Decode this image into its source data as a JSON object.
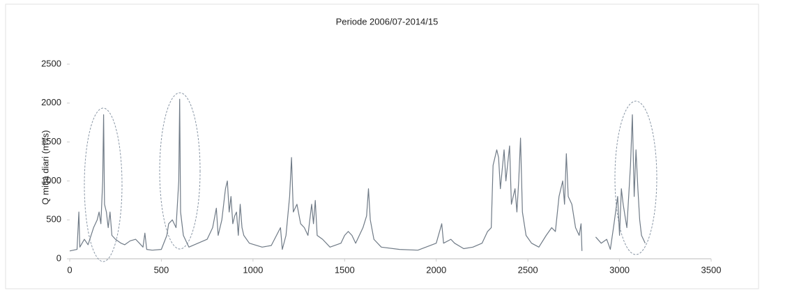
{
  "chart_data": {
    "type": "line",
    "title": "Periode 2006/07-2014/15",
    "y_label": "Q mitja diari (m³/s)",
    "x": [
      0,
      40,
      50,
      55,
      80,
      100,
      130,
      150,
      160,
      170,
      180,
      185,
      190,
      200,
      210,
      220,
      230,
      250,
      280,
      300,
      330,
      360,
      380,
      400,
      410,
      420,
      450,
      500,
      530,
      540,
      560,
      580,
      595,
      600,
      605,
      620,
      650,
      700,
      750,
      780,
      800,
      810,
      830,
      850,
      860,
      870,
      880,
      890,
      900,
      910,
      920,
      930,
      940,
      950,
      980,
      1050,
      1100,
      1150,
      1160,
      1180,
      1200,
      1210,
      1220,
      1240,
      1260,
      1280,
      1300,
      1320,
      1330,
      1340,
      1350,
      1380,
      1420,
      1480,
      1500,
      1520,
      1540,
      1560,
      1600,
      1620,
      1630,
      1640,
      1660,
      1700,
      1800,
      1900,
      2000,
      2030,
      2040,
      2080,
      2100,
      2150,
      2200,
      2250,
      2280,
      2300,
      2310,
      2330,
      2340,
      2350,
      2370,
      2380,
      2400,
      2410,
      2430,
      2440,
      2450,
      2460,
      2470,
      2490,
      2520,
      2560,
      2600,
      2630,
      2650,
      2670,
      2690,
      2700,
      2710,
      2720,
      2740,
      2760,
      2780,
      2790,
      2795,
      2830,
      2870,
      2900,
      2930,
      2950,
      2970,
      2990,
      3000,
      3010,
      3020,
      3040,
      3060,
      3070,
      3080,
      3090,
      3100,
      3110,
      3120,
      3140
    ],
    "values": [
      100,
      120,
      600,
      150,
      250,
      180,
      400,
      500,
      600,
      450,
      1000,
      1850,
      700,
      600,
      400,
      600,
      300,
      250,
      200,
      180,
      230,
      250,
      200,
      150,
      330,
      120,
      110,
      120,
      300,
      450,
      500,
      400,
      1000,
      2050,
      600,
      300,
      150,
      200,
      250,
      400,
      650,
      300,
      500,
      900,
      1000,
      600,
      800,
      450,
      550,
      600,
      300,
      700,
      400,
      300,
      200,
      150,
      170,
      400,
      120,
      300,
      800,
      1300,
      600,
      700,
      450,
      400,
      300,
      700,
      450,
      750,
      300,
      250,
      150,
      200,
      300,
      350,
      300,
      200,
      400,
      550,
      900,
      500,
      250,
      150,
      120,
      110,
      200,
      450,
      200,
      250,
      200,
      130,
      150,
      200,
      350,
      400,
      1200,
      1400,
      1300,
      900,
      1400,
      1000,
      1450,
      700,
      900,
      600,
      1000,
      1550,
      600,
      300,
      200,
      150,
      300,
      400,
      350,
      800,
      1000,
      700,
      1350,
      800,
      700,
      400,
      300,
      450,
      100,
      null,
      280,
      200,
      250,
      120,
      450,
      800,
      300,
      900,
      700,
      400,
      1200,
      1850,
      800,
      1400,
      900,
      500,
      300,
      200
    ],
    "color": "#6f7a86",
    "xlim": [
      0,
      3500
    ],
    "xticks": [
      0,
      500,
      1000,
      1500,
      2000,
      2500,
      3000,
      3500
    ],
    "ylim": [
      0,
      2500
    ],
    "yticks": [
      0,
      500,
      1000,
      1500,
      2000,
      2500
    ]
  }
}
